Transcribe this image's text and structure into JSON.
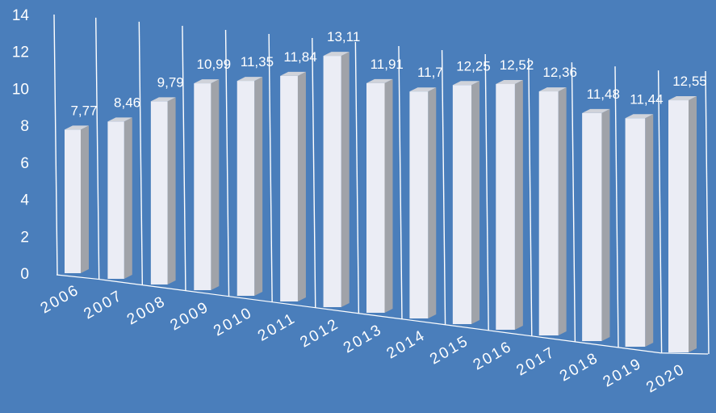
{
  "chart_data": {
    "type": "bar",
    "style": "3d-column",
    "categories": [
      "2006",
      "2007",
      "2008",
      "2009",
      "2010",
      "2011",
      "2012",
      "2013",
      "2014",
      "2015",
      "2016",
      "2017",
      "2018",
      "2019",
      "2020"
    ],
    "values": [
      7.77,
      8.46,
      9.79,
      10.99,
      11.35,
      11.84,
      13.11,
      11.91,
      11.7,
      12.25,
      12.52,
      12.36,
      11.48,
      11.44,
      12.55
    ],
    "data_labels": [
      "7,77",
      "8,46",
      "9,79",
      "10,99",
      "11,35",
      "11,84",
      "13,11",
      "11,91",
      "11,7",
      "12,25",
      "12,52",
      "12,36",
      "11,48",
      "11,44",
      "12,55"
    ],
    "y_ticks": [
      "0",
      "2",
      "4",
      "6",
      "8",
      "10",
      "12",
      "14"
    ],
    "ylim": [
      0,
      14
    ],
    "title": "",
    "xlabel": "",
    "ylabel": "",
    "grid": true,
    "legend": "none",
    "colors": {
      "background": "#4a7ebb",
      "bar_front": "#ebedf5",
      "bar_side": "#a0a3a9",
      "bar_top": "#d0d3da",
      "text": "#ffffff"
    }
  }
}
